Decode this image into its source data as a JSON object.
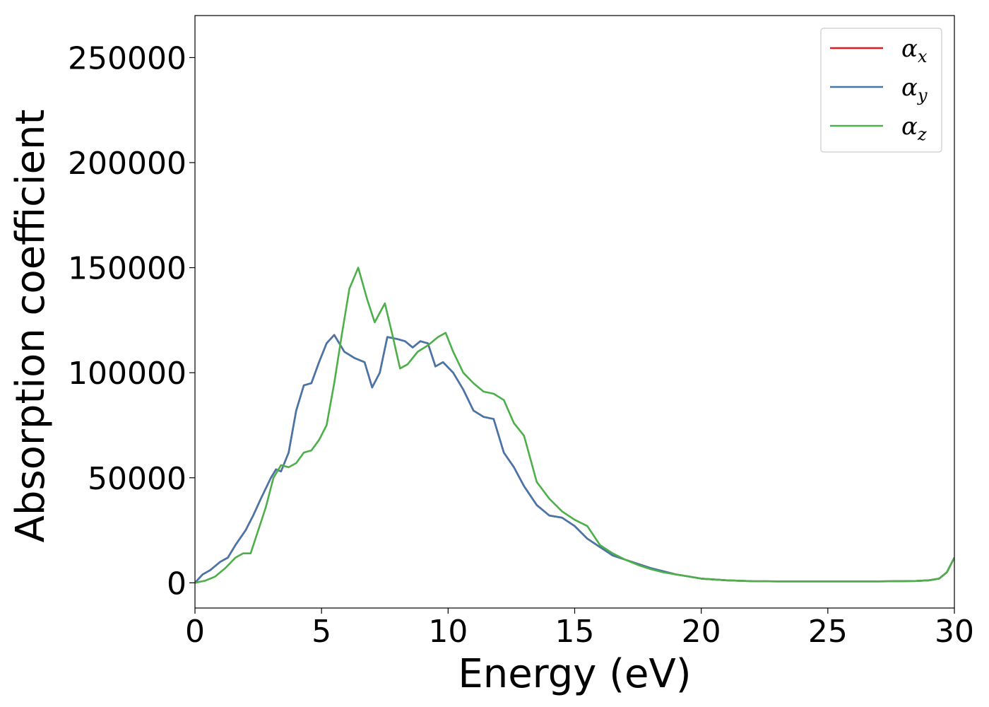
{
  "chart_data": {
    "type": "line",
    "xlabel": "Energy (eV)",
    "ylabel": "Absorption coefficient",
    "xlim": [
      0,
      30
    ],
    "ylim": [
      -12000,
      270000
    ],
    "xticks": [
      0,
      5,
      10,
      15,
      20,
      25,
      30
    ],
    "yticks": [
      0,
      50000,
      100000,
      150000,
      200000,
      250000
    ],
    "grid": false,
    "legend_position": "top-right",
    "series": [
      {
        "name": "α",
        "subscript": "x",
        "color": "#e41a1c",
        "x": [
          0,
          0.3,
          0.6,
          1.0,
          1.3,
          1.6,
          2.0,
          2.3,
          2.6,
          3.0,
          3.2,
          3.4,
          3.7,
          4.0,
          4.3,
          4.6,
          4.9,
          5.2,
          5.5,
          5.9,
          6.3,
          6.7,
          7.0,
          7.3,
          7.6,
          8.0,
          8.3,
          8.6,
          8.9,
          9.2,
          9.5,
          9.8,
          10.2,
          10.6,
          11.0,
          11.4,
          11.8,
          12.2,
          12.6,
          13.0,
          13.5,
          14.0,
          14.5,
          15.0,
          15.5,
          16.0,
          16.5,
          17.0,
          17.5,
          18.0,
          18.5,
          19.0,
          19.5,
          20,
          21,
          22,
          23,
          24,
          25,
          26,
          27,
          28,
          28.5,
          29,
          29.4,
          29.7,
          30
        ],
        "values": [
          0,
          4000,
          6000,
          10000,
          12000,
          18000,
          25000,
          32000,
          40000,
          50000,
          54000,
          53000,
          62000,
          82000,
          94000,
          95000,
          105000,
          114000,
          118000,
          110000,
          107000,
          105000,
          93000,
          100000,
          117000,
          116000,
          115000,
          112000,
          115000,
          114000,
          103000,
          105000,
          100000,
          92000,
          82000,
          79000,
          78000,
          62000,
          55000,
          46000,
          37000,
          32000,
          31000,
          27000,
          21000,
          17000,
          13000,
          11000,
          9000,
          7000,
          5500,
          4000,
          3000,
          2000,
          1200,
          800,
          700,
          700,
          700,
          700,
          700,
          800,
          900,
          1200,
          2000,
          5000,
          12000
        ]
      },
      {
        "name": "α",
        "subscript": "y",
        "color": "#4477aa",
        "x": [
          0,
          0.3,
          0.6,
          1.0,
          1.3,
          1.6,
          2.0,
          2.3,
          2.6,
          3.0,
          3.2,
          3.4,
          3.7,
          4.0,
          4.3,
          4.6,
          4.9,
          5.2,
          5.5,
          5.9,
          6.3,
          6.7,
          7.0,
          7.3,
          7.6,
          8.0,
          8.3,
          8.6,
          8.9,
          9.2,
          9.5,
          9.8,
          10.2,
          10.6,
          11.0,
          11.4,
          11.8,
          12.2,
          12.6,
          13.0,
          13.5,
          14.0,
          14.5,
          15.0,
          15.5,
          16.0,
          16.5,
          17.0,
          17.5,
          18.0,
          18.5,
          19.0,
          19.5,
          20,
          21,
          22,
          23,
          24,
          25,
          26,
          27,
          28,
          28.5,
          29,
          29.4,
          29.7,
          30
        ],
        "values": [
          0,
          4000,
          6000,
          10000,
          12000,
          18000,
          25000,
          32000,
          40000,
          50000,
          54000,
          53000,
          62000,
          82000,
          94000,
          95000,
          105000,
          114000,
          118000,
          110000,
          107000,
          105000,
          93000,
          100000,
          117000,
          116000,
          115000,
          112000,
          115000,
          114000,
          103000,
          105000,
          100000,
          92000,
          82000,
          79000,
          78000,
          62000,
          55000,
          46000,
          37000,
          32000,
          31000,
          27000,
          21000,
          17000,
          13000,
          11000,
          9000,
          7000,
          5500,
          4000,
          3000,
          2000,
          1200,
          800,
          700,
          700,
          700,
          700,
          700,
          800,
          900,
          1200,
          2000,
          5000,
          12000
        ]
      },
      {
        "name": "α",
        "subscript": "z",
        "color": "#4daf4a",
        "x": [
          0,
          0.4,
          0.8,
          1.2,
          1.6,
          1.9,
          2.2,
          2.5,
          2.8,
          3.1,
          3.4,
          3.7,
          4.0,
          4.3,
          4.6,
          4.9,
          5.2,
          5.5,
          5.8,
          6.1,
          6.45,
          6.8,
          7.1,
          7.5,
          7.8,
          8.1,
          8.4,
          8.8,
          9.2,
          9.6,
          9.9,
          10.2,
          10.6,
          11.0,
          11.4,
          11.8,
          12.2,
          12.6,
          13.0,
          13.5,
          14.0,
          14.5,
          15.0,
          15.5,
          16.0,
          16.5,
          17.0,
          17.5,
          18.0,
          18.5,
          19.0,
          19.5,
          20,
          21,
          22,
          23,
          24,
          25,
          26,
          27,
          28,
          28.5,
          29,
          29.4,
          29.7,
          30
        ],
        "values": [
          0,
          1000,
          3000,
          7000,
          12000,
          14000,
          14000,
          25000,
          36000,
          50000,
          56000,
          55000,
          57000,
          62000,
          63000,
          68000,
          75000,
          95000,
          118000,
          140000,
          150000,
          135000,
          124000,
          133000,
          118000,
          102000,
          104000,
          110000,
          113000,
          117000,
          119000,
          110000,
          100000,
          95000,
          91000,
          90000,
          87000,
          76000,
          70000,
          48000,
          40000,
          34000,
          30000,
          27000,
          18000,
          14000,
          11000,
          8500,
          6500,
          5000,
          4000,
          3000,
          2000,
          1200,
          800,
          700,
          700,
          700,
          700,
          700,
          800,
          900,
          1200,
          2000,
          5000,
          12000
        ]
      }
    ]
  }
}
